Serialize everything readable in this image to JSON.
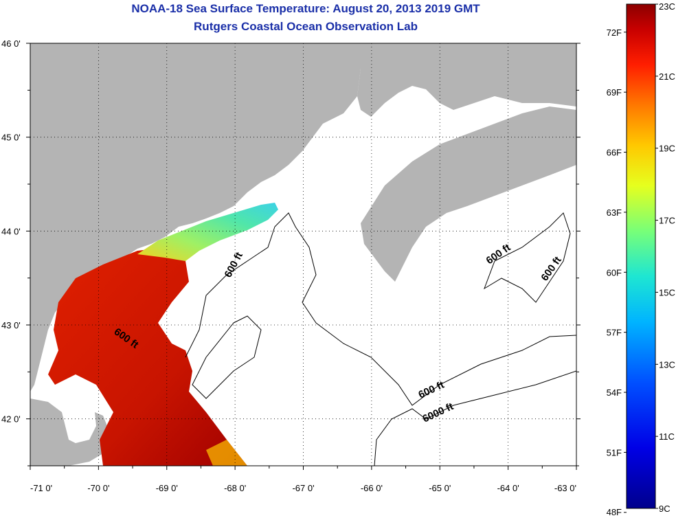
{
  "header": {
    "title": "NOAA-18 Sea Surface Temperature:  August 20, 2013 2019 GMT",
    "subtitle": "Rutgers Coastal Ocean Observation Lab"
  },
  "map": {
    "lon_ticks": [
      {
        "value": -71,
        "label": "-71 0'"
      },
      {
        "value": -70,
        "label": "-70 0'"
      },
      {
        "value": -69,
        "label": "-69 0'"
      },
      {
        "value": -68,
        "label": "-68 0'"
      },
      {
        "value": -67,
        "label": "-67 0'"
      },
      {
        "value": -66,
        "label": "-66 0'"
      },
      {
        "value": -65,
        "label": "-65 0'"
      },
      {
        "value": -64,
        "label": "-64 0'"
      },
      {
        "value": -63,
        "label": "-63 0'"
      }
    ],
    "lat_ticks": [
      {
        "value": 46,
        "label": "46 0'"
      },
      {
        "value": 45,
        "label": "45 0'"
      },
      {
        "value": 44,
        "label": "44 0'"
      },
      {
        "value": 43,
        "label": "43 0'"
      },
      {
        "value": 42,
        "label": "42 0'"
      }
    ],
    "lon_range": [
      -71,
      -63
    ],
    "lat_range": [
      41.5,
      46
    ],
    "land_color": "#b4b4b4",
    "contour_labels": [
      {
        "text": "600 ft"
      },
      {
        "text": "600 ft"
      },
      {
        "text": "600 ft"
      },
      {
        "text": "600 ft"
      },
      {
        "text": "600 ft"
      },
      {
        "text": "6000 ft"
      }
    ]
  },
  "colorbar": {
    "celsius_labels": [
      {
        "value": 23,
        "label": "23C"
      },
      {
        "value": 21,
        "label": "21C"
      },
      {
        "value": 19,
        "label": "19C"
      },
      {
        "value": 17,
        "label": "17C"
      },
      {
        "value": 15,
        "label": "15C"
      },
      {
        "value": 13,
        "label": "13C"
      },
      {
        "value": 11,
        "label": "11C"
      },
      {
        "value": 9,
        "label": "9C"
      }
    ],
    "fahrenheit_labels": [
      {
        "value": 72,
        "label": "72F"
      },
      {
        "value": 69,
        "label": "69F"
      },
      {
        "value": 66,
        "label": "66F"
      },
      {
        "value": 63,
        "label": "63F"
      },
      {
        "value": 60,
        "label": "60F"
      },
      {
        "value": 57,
        "label": "57F"
      },
      {
        "value": 54,
        "label": "54F"
      },
      {
        "value": 51,
        "label": "51F"
      },
      {
        "value": 48,
        "label": "48F"
      }
    ],
    "range_c": [
      9,
      23
    ]
  }
}
